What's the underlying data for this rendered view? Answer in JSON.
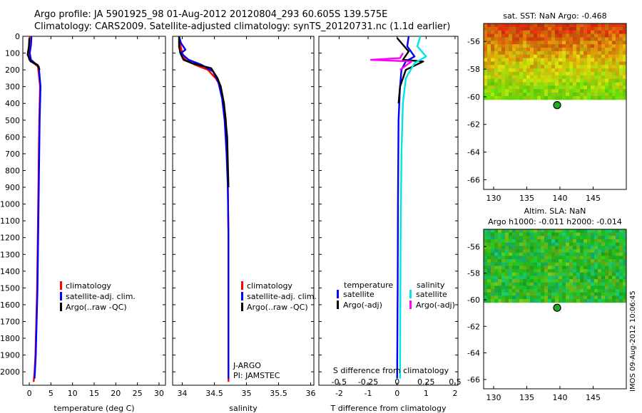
{
  "header": {
    "line1": "Argo profile: JA 5901925_98 01-Aug-2012 20120804_293 60.605S 139.575E",
    "line2": "Climatology: CARS2009. Satellite-adjusted climatology: synTS_20120731.nc (1.1d earlier)"
  },
  "side_stamp": "IMOS 09-Aug-2012 10:06:45",
  "colors": {
    "climatology": "#ff0000",
    "satellite": "#0000ff",
    "argo": "#000000",
    "salinity_satellite": "#00e5e5",
    "salinity_argo": "#ff00ff"
  },
  "chart_data": [
    {
      "type": "line",
      "id": "temperature",
      "xlabel": "temperature (deg C)",
      "ylabel": "",
      "xlim": [
        -1.5,
        31.5
      ],
      "ylim": [
        2080,
        0
      ],
      "xticks": [
        0,
        5,
        10,
        15,
        20,
        25,
        30
      ],
      "yticks": [
        0,
        100,
        200,
        300,
        400,
        500,
        600,
        700,
        800,
        900,
        1000,
        1100,
        1200,
        1300,
        1400,
        1500,
        1600,
        1700,
        1800,
        1900,
        2000
      ],
      "legend": {
        "placement": "lower-center",
        "entries": [
          "climatology",
          "satellite-adj. clim.",
          "Argo(..raw -QC)"
        ]
      },
      "series": [
        {
          "name": "climatology",
          "color": "#ff0000",
          "x": [
            0.1,
            0.0,
            -0.3,
            0.0,
            2.0,
            2.5,
            2.3,
            2.2,
            2.1,
            2.0,
            1.9,
            1.8,
            1.6,
            1.5,
            1.4,
            1.2,
            1.0
          ],
          "y": [
            0,
            50,
            100,
            140,
            180,
            300,
            500,
            700,
            900,
            1100,
            1300,
            1500,
            1700,
            1800,
            1900,
            2000,
            2060
          ]
        },
        {
          "name": "satellite-adj. clim.",
          "color": "#0000ff",
          "x": [
            0.5,
            0.4,
            0.1,
            0.4,
            2.2,
            2.6,
            2.4,
            2.3,
            2.2,
            2.1,
            2.0,
            1.9,
            1.7,
            1.6,
            1.5,
            1.3,
            1.2
          ],
          "y": [
            0,
            50,
            100,
            140,
            180,
            300,
            500,
            700,
            900,
            1100,
            1300,
            1500,
            1700,
            1800,
            1900,
            2000,
            2040
          ]
        },
        {
          "name": "Argo(..raw -QC)",
          "color": "#000000",
          "x": [
            0.0,
            -0.1,
            -0.4,
            0.3,
            1.9,
            2.4
          ],
          "y": [
            10,
            60,
            110,
            150,
            170,
            200
          ]
        }
      ]
    },
    {
      "type": "line",
      "id": "salinity",
      "xlabel": "salinity",
      "ylabel": "",
      "xlim": [
        33.85,
        36.05
      ],
      "ylim": [
        2080,
        0
      ],
      "xticks": [
        34,
        34.5,
        35,
        35.5,
        36
      ],
      "legend": {
        "placement": "lower-center",
        "entries": [
          "climatology",
          "satellite-adj. clim.",
          "Argo(..raw -QC)"
        ]
      },
      "annotations": [
        "J-ARGO",
        "PI: JAMSTEC"
      ],
      "series": [
        {
          "name": "climatology",
          "color": "#ff0000",
          "x": [
            33.95,
            33.97,
            34.0,
            34.05,
            34.2,
            34.4,
            34.52,
            34.6,
            34.65,
            34.68,
            34.7,
            34.71,
            34.72,
            34.72,
            34.72,
            34.72
          ],
          "y": [
            0,
            50,
            100,
            140,
            170,
            200,
            250,
            300,
            400,
            500,
            700,
            900,
            1200,
            1500,
            1800,
            2060
          ]
        },
        {
          "name": "satellite-adj. clim.",
          "color": "#0000ff",
          "x": [
            33.95,
            33.98,
            34.05,
            33.98,
            34.1,
            34.3,
            34.48,
            34.56,
            34.62,
            34.66,
            34.69,
            34.71,
            34.72,
            34.72,
            34.72,
            34.72
          ],
          "y": [
            0,
            40,
            80,
            100,
            140,
            170,
            210,
            270,
            370,
            500,
            700,
            900,
            1200,
            1500,
            1800,
            2040
          ]
        },
        {
          "name": "Argo(..raw -QC)",
          "color": "#000000",
          "x": [
            33.95,
            33.95,
            33.97,
            34.02,
            34.15,
            34.45,
            34.55,
            34.6,
            34.65,
            34.7,
            34.72
          ],
          "y": [
            0,
            60,
            100,
            140,
            160,
            190,
            250,
            300,
            400,
            600,
            900
          ]
        }
      ]
    },
    {
      "type": "line",
      "id": "difference",
      "xlabel": "T difference from climatology",
      "xlabel2": "S difference from climatology",
      "xlim": [
        -2.7,
        2.1
      ],
      "ylim": [
        2080,
        0
      ],
      "xticks": [
        -2,
        -1,
        0,
        1,
        2
      ],
      "xticks_salinity": [
        -0.5,
        -0.25,
        0,
        0.25,
        0.5
      ],
      "legend": {
        "placement": "lower-center",
        "groups": [
          {
            "title": "temperature",
            "entries": [
              "satellite",
              "Argo(-adj)"
            ]
          },
          {
            "title": "salinity",
            "entries": [
              "satellite",
              "Argo(-adj)"
            ]
          }
        ]
      },
      "series": [
        {
          "name": "temperature satellite",
          "color": "#0000ff",
          "x": [
            0.4,
            0.35,
            0.6,
            0.3,
            0.15,
            0.1,
            0.05,
            0.03,
            0.02,
            0.0
          ],
          "y": [
            0,
            60,
            120,
            150,
            200,
            300,
            500,
            1000,
            1500,
            2040
          ]
        },
        {
          "name": "temperature Argo(-adj)",
          "color": "#000000",
          "x": [
            0.0,
            0.4,
            0.2,
            0.9,
            0.3,
            0.1,
            0.05
          ],
          "y": [
            10,
            90,
            140,
            150,
            200,
            300,
            400
          ]
        },
        {
          "name": "salinity satellite",
          "color": "#00e5e5",
          "x": [
            0.8,
            0.7,
            1.0,
            0.6,
            0.3,
            0.2,
            0.15,
            0.12,
            0.1
          ],
          "y": [
            0,
            60,
            120,
            160,
            250,
            400,
            700,
            1200,
            2040
          ]
        },
        {
          "name": "salinity Argo(-adj)",
          "color": "#ff00ff",
          "x": [
            0.2,
            0.1,
            -0.9,
            0.5,
            0.1
          ],
          "y": [
            100,
            130,
            140,
            150,
            200
          ]
        }
      ]
    },
    {
      "type": "heatmap",
      "id": "sst_map",
      "title": "sat. SST: NaN Argo: -0.468",
      "xlim": [
        128.5,
        150
      ],
      "ylim": [
        -66.7,
        -54.7
      ],
      "xticks": [
        130,
        135,
        140,
        145
      ],
      "yticks": [
        -56,
        -58,
        -60,
        -62,
        -64,
        -66
      ],
      "data_extent_lat": [
        -60.2,
        -54.7
      ],
      "argo_position": {
        "lon": 139.575,
        "lat": -60.605
      }
    },
    {
      "type": "heatmap",
      "id": "sla_map",
      "title": "Altim. SLA: NaN",
      "subtitle": "Argo h1000: -0.011 h2000: -0.014",
      "xlim": [
        128.5,
        150
      ],
      "ylim": [
        -66.7,
        -54.7
      ],
      "xticks": [
        130,
        135,
        140,
        145
      ],
      "yticks": [
        -56,
        -58,
        -60,
        -62,
        -64,
        -66
      ],
      "data_extent_lat": [
        -60.2,
        -54.7
      ],
      "argo_position": {
        "lon": 139.575,
        "lat": -60.605
      }
    }
  ]
}
